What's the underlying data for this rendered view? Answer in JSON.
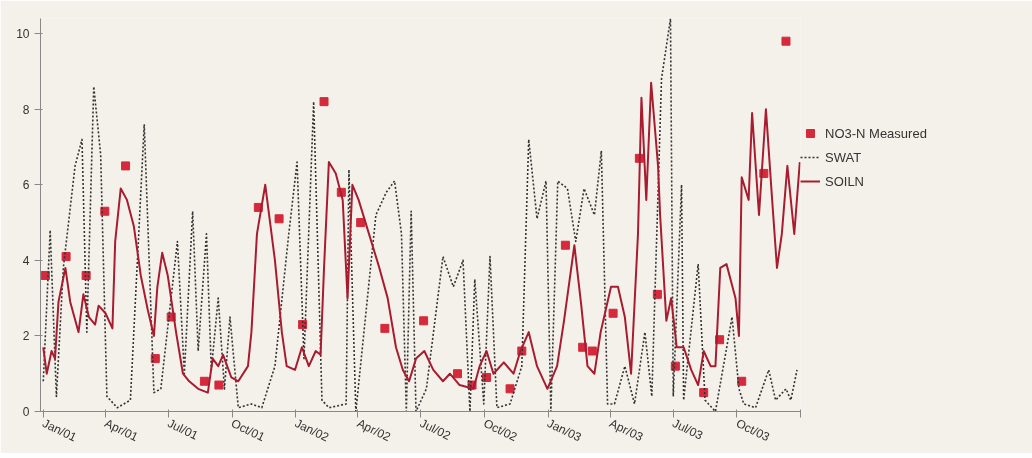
{
  "chart_data": {
    "type": "line",
    "legend": "right",
    "xlim": [
      "2000-12-28",
      "2004-01-01"
    ],
    "xticks": [
      {
        "value": "2001-01-01",
        "label": "Jan/01"
      },
      {
        "value": "2001-04-01",
        "label": "Apr/01"
      },
      {
        "value": "2001-07-01",
        "label": "Jul/01"
      },
      {
        "value": "2001-10-01",
        "label": "Oct/01"
      },
      {
        "value": "2002-01-01",
        "label": "Jan/02"
      },
      {
        "value": "2002-04-01",
        "label": "Apr/02"
      },
      {
        "value": "2002-07-01",
        "label": "Jul/02"
      },
      {
        "value": "2002-10-01",
        "label": "Oct/02"
      },
      {
        "value": "2003-01-01",
        "label": "Jan/03"
      },
      {
        "value": "2003-04-01",
        "label": "Apr/03"
      },
      {
        "value": "2003-07-01",
        "label": "Jul/03"
      },
      {
        "value": "2003-10-01",
        "label": "Oct/03"
      },
      {
        "value": "2004-01-01",
        "label": null
      }
    ],
    "ylim": [
      0,
      10.4
    ],
    "yticks": [
      0,
      2,
      4,
      6,
      8,
      10
    ],
    "series": [
      {
        "name": "NO3-N Measured",
        "type": "scatter",
        "marker": "square",
        "color": "#d42a3c",
        "x": [
          "2001-01-04",
          "2001-02-03",
          "2001-03-04",
          "2001-03-31",
          "2001-04-30",
          "2001-06-12",
          "2001-07-05",
          "2001-08-22",
          "2001-09-12",
          "2001-11-08",
          "2001-12-08",
          "2002-01-11",
          "2002-02-11",
          "2002-03-08",
          "2002-04-05",
          "2002-05-10",
          "2002-07-05",
          "2002-08-23",
          "2002-09-13",
          "2002-10-04",
          "2002-11-07",
          "2002-11-24",
          "2003-01-26",
          "2003-02-20",
          "2003-03-06",
          "2003-04-05",
          "2003-05-13",
          "2003-06-08",
          "2003-07-04",
          "2003-08-14",
          "2003-09-06",
          "2003-10-08",
          "2003-11-09",
          "2003-12-11"
        ],
        "values": [
          3.6,
          4.1,
          3.6,
          5.3,
          6.5,
          1.4,
          2.5,
          0.8,
          0.7,
          5.4,
          5.1,
          2.3,
          8.2,
          5.8,
          5.0,
          2.2,
          2.4,
          1.0,
          0.7,
          0.9,
          0.6,
          1.6,
          4.4,
          1.7,
          1.6,
          2.6,
          6.7,
          3.1,
          1.2,
          0.5,
          1.9,
          0.8,
          6.3,
          9.8
        ]
      },
      {
        "name": "SWAT",
        "line_style": "dotted",
        "color": "#333333",
        "x": [
          "2001-01-01",
          "2001-01-11",
          "2001-01-20",
          "2001-01-30",
          "2001-02-16",
          "2001-02-26",
          "2001-03-05",
          "2001-03-15",
          "2001-03-25",
          "2001-04-03",
          "2001-04-18",
          "2001-05-07",
          "2001-05-27",
          "2001-06-10",
          "2001-06-20",
          "2001-07-14",
          "2001-07-24",
          "2001-08-05",
          "2001-08-13",
          "2001-08-25",
          "2001-09-01",
          "2001-09-11",
          "2001-09-20",
          "2001-09-28",
          "2001-10-10",
          "2001-10-29",
          "2001-11-13",
          "2001-12-02",
          "2001-12-22",
          "2002-01-03",
          "2002-01-13",
          "2002-01-27",
          "2002-02-08",
          "2002-02-18",
          "2002-03-15",
          "2002-03-19",
          "2002-03-29",
          "2002-04-27",
          "2002-05-12",
          "2002-05-24",
          "2002-06-03",
          "2002-06-10",
          "2002-06-17",
          "2002-06-24",
          "2002-07-09",
          "2002-08-02",
          "2002-08-17",
          "2002-08-31",
          "2002-09-10",
          "2002-09-17",
          "2002-09-30",
          "2002-10-09",
          "2002-10-19",
          "2002-11-07",
          "2002-11-24",
          "2002-12-04",
          "2002-12-16",
          "2002-12-29",
          "2003-01-05",
          "2003-01-15",
          "2003-01-29",
          "2003-02-10",
          "2003-02-22",
          "2003-03-09",
          "2003-03-19",
          "2003-03-28",
          "2003-04-07",
          "2003-04-22",
          "2003-05-06",
          "2003-05-21",
          "2003-05-31",
          "2003-06-14",
          "2003-06-27",
          "2003-07-01",
          "2003-07-13",
          "2003-07-16",
          "2003-08-06",
          "2003-08-16",
          "2003-08-31",
          "2003-09-24",
          "2003-10-04",
          "2003-10-11",
          "2003-10-28",
          "2003-11-16",
          "2003-11-26",
          "2003-12-11",
          "2003-12-18",
          "2003-12-27"
        ],
        "values": [
          0.8,
          4.8,
          0.4,
          3.8,
          6.5,
          7.2,
          2.1,
          8.6,
          6.8,
          0.4,
          0.1,
          0.3,
          7.6,
          0.5,
          0.6,
          4.5,
          1.0,
          5.3,
          1.6,
          4.7,
          1.1,
          3.0,
          0.6,
          2.5,
          0.1,
          0.2,
          0.1,
          1.2,
          4.7,
          6.6,
          1.4,
          8.2,
          0.3,
          0.1,
          0.2,
          6.4,
          0.0,
          5.2,
          5.8,
          6.1,
          4.7,
          0.0,
          5.3,
          0.0,
          0.6,
          4.1,
          3.3,
          4.0,
          0.0,
          3.5,
          0.2,
          4.1,
          0.1,
          0.2,
          1.2,
          7.2,
          5.1,
          6.1,
          0.0,
          6.1,
          5.9,
          4.5,
          5.9,
          5.2,
          6.9,
          0.2,
          0.2,
          1.2,
          0.2,
          2.1,
          0.4,
          8.8,
          10.4,
          0.4,
          6.0,
          0.3,
          3.9,
          0.3,
          0.0,
          2.5,
          0.6,
          0.2,
          0.1,
          1.1,
          0.3,
          0.6,
          0.3,
          1.1
        ]
      },
      {
        "name": "SOILN",
        "line_style": "solid",
        "color": "#a81c30",
        "x": [
          "2001-01-01",
          "2001-01-06",
          "2001-01-13",
          "2001-01-18",
          "2001-01-23",
          "2001-02-02",
          "2001-02-09",
          "2001-02-21",
          "2001-02-28",
          "2001-03-08",
          "2001-03-17",
          "2001-03-22",
          "2001-04-01",
          "2001-04-11",
          "2001-04-15",
          "2001-04-23",
          "2001-05-02",
          "2001-05-12",
          "2001-05-22",
          "2001-06-01",
          "2001-06-10",
          "2001-06-15",
          "2001-06-22",
          "2001-06-30",
          "2001-07-12",
          "2001-07-22",
          "2001-07-31",
          "2001-08-13",
          "2001-08-27",
          "2001-09-03",
          "2001-09-11",
          "2001-09-18",
          "2001-09-30",
          "2001-10-10",
          "2001-10-24",
          "2001-10-29",
          "2001-11-06",
          "2001-11-18",
          "2001-12-02",
          "2001-12-12",
          "2001-12-19",
          "2001-12-31",
          "2002-01-10",
          "2002-01-20",
          "2002-01-30",
          "2002-02-06",
          "2002-02-11",
          "2002-02-18",
          "2002-02-28",
          "2002-03-10",
          "2002-03-17",
          "2002-03-24",
          "2002-04-02",
          "2002-04-17",
          "2002-05-02",
          "2002-05-14",
          "2002-05-26",
          "2002-06-05",
          "2002-06-14",
          "2002-06-24",
          "2002-07-06",
          "2002-07-19",
          "2002-08-02",
          "2002-08-12",
          "2002-08-26",
          "2002-09-15",
          "2002-09-24",
          "2002-10-04",
          "2002-10-14",
          "2002-10-29",
          "2002-11-12",
          "2002-11-22",
          "2002-12-04",
          "2002-12-16",
          "2002-12-31",
          "2003-01-14",
          "2003-01-24",
          "2003-02-08",
          "2003-02-18",
          "2003-02-27",
          "2003-03-09",
          "2003-03-18",
          "2003-04-02",
          "2003-04-12",
          "2003-04-22",
          "2003-05-01",
          "2003-05-11",
          "2003-05-16",
          "2003-05-23",
          "2003-05-30",
          "2003-06-09",
          "2003-06-12",
          "2003-06-21",
          "2003-06-28",
          "2003-07-06",
          "2003-07-16",
          "2003-07-27",
          "2003-08-06",
          "2003-08-14",
          "2003-08-24",
          "2003-08-31",
          "2003-09-07",
          "2003-09-16",
          "2003-09-29",
          "2003-10-04",
          "2003-10-08",
          "2003-10-18",
          "2003-10-23",
          "2003-11-02",
          "2003-11-12",
          "2003-11-21",
          "2003-11-28",
          "2003-12-05",
          "2003-12-13",
          "2003-12-23",
          "2003-12-31"
        ],
        "values": [
          1.7,
          1.0,
          1.6,
          1.4,
          2.9,
          3.8,
          2.9,
          2.1,
          3.1,
          2.5,
          2.3,
          2.8,
          2.6,
          2.2,
          4.5,
          5.9,
          5.6,
          4.9,
          3.6,
          2.7,
          2.0,
          3.3,
          4.2,
          3.6,
          2.1,
          1.0,
          0.8,
          0.6,
          0.5,
          1.4,
          1.2,
          1.5,
          0.9,
          0.8,
          1.2,
          2.1,
          4.7,
          6.0,
          4.0,
          2.1,
          1.2,
          1.1,
          1.7,
          1.2,
          1.6,
          1.5,
          3.8,
          6.6,
          6.3,
          5.6,
          3.0,
          6.0,
          5.6,
          4.7,
          3.8,
          3.0,
          1.7,
          1.1,
          0.8,
          1.4,
          1.6,
          1.1,
          0.8,
          1.0,
          0.7,
          0.6,
          1.2,
          1.6,
          1.0,
          1.3,
          1.0,
          1.6,
          2.1,
          1.2,
          0.6,
          1.2,
          2.4,
          4.4,
          2.8,
          1.2,
          1.0,
          2.1,
          3.3,
          3.3,
          2.5,
          1.0,
          4.7,
          8.3,
          5.6,
          8.7,
          6.5,
          5.2,
          2.4,
          3.0,
          1.7,
          1.7,
          1.1,
          0.7,
          1.6,
          1.2,
          1.2,
          3.8,
          3.9,
          3.0,
          2.0,
          6.2,
          5.6,
          7.9,
          5.2,
          8.0,
          5.6,
          3.8,
          4.7,
          6.5,
          4.7,
          6.6
        ]
      }
    ]
  }
}
